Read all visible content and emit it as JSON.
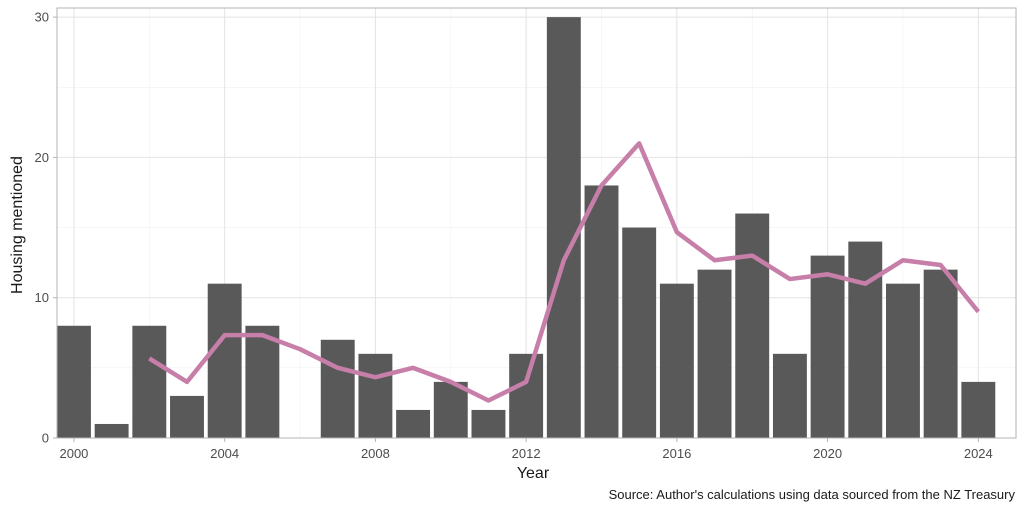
{
  "chart_data": {
    "type": "bar",
    "xlabel": "Year",
    "ylabel": "Housing mentioned",
    "caption": "Source: Author's calculations using data sourced from the NZ Treasury",
    "xlim": [
      1999.55,
      2025.0
    ],
    "ylim": [
      0,
      30.65
    ],
    "x_ticks": [
      2000,
      2004,
      2008,
      2012,
      2016,
      2020,
      2024
    ],
    "y_ticks": [
      0,
      10,
      20,
      30
    ],
    "grid": true,
    "bar_color": "#595959",
    "line_color": "#c77ea8",
    "series": [
      {
        "type": "bar",
        "x": [
          2000,
          2001,
          2002,
          2003,
          2004,
          2005,
          2007,
          2008,
          2009,
          2010,
          2011,
          2012,
          2013,
          2014,
          2015,
          2016,
          2017,
          2018,
          2019,
          2020,
          2021,
          2022,
          2023,
          2024
        ],
        "values": [
          8,
          1,
          8,
          3,
          11,
          8,
          7,
          6,
          2,
          4,
          2,
          6,
          30,
          18,
          15,
          11,
          12,
          16,
          6,
          13,
          14,
          11,
          12,
          4
        ]
      },
      {
        "type": "line",
        "x": [
          2002,
          2003,
          2004,
          2005,
          2006,
          2007,
          2008,
          2009,
          2010,
          2011,
          2012,
          2013,
          2014,
          2015,
          2016,
          2017,
          2018,
          2019,
          2020,
          2021,
          2022,
          2023,
          2024
        ],
        "values": [
          5.67,
          4.0,
          7.33,
          7.33,
          6.33,
          5.0,
          4.33,
          5.0,
          4.0,
          2.67,
          4.0,
          12.67,
          18.0,
          21.0,
          14.67,
          12.67,
          13.0,
          11.33,
          11.67,
          11.0,
          12.67,
          12.33,
          9.0
        ]
      }
    ]
  }
}
